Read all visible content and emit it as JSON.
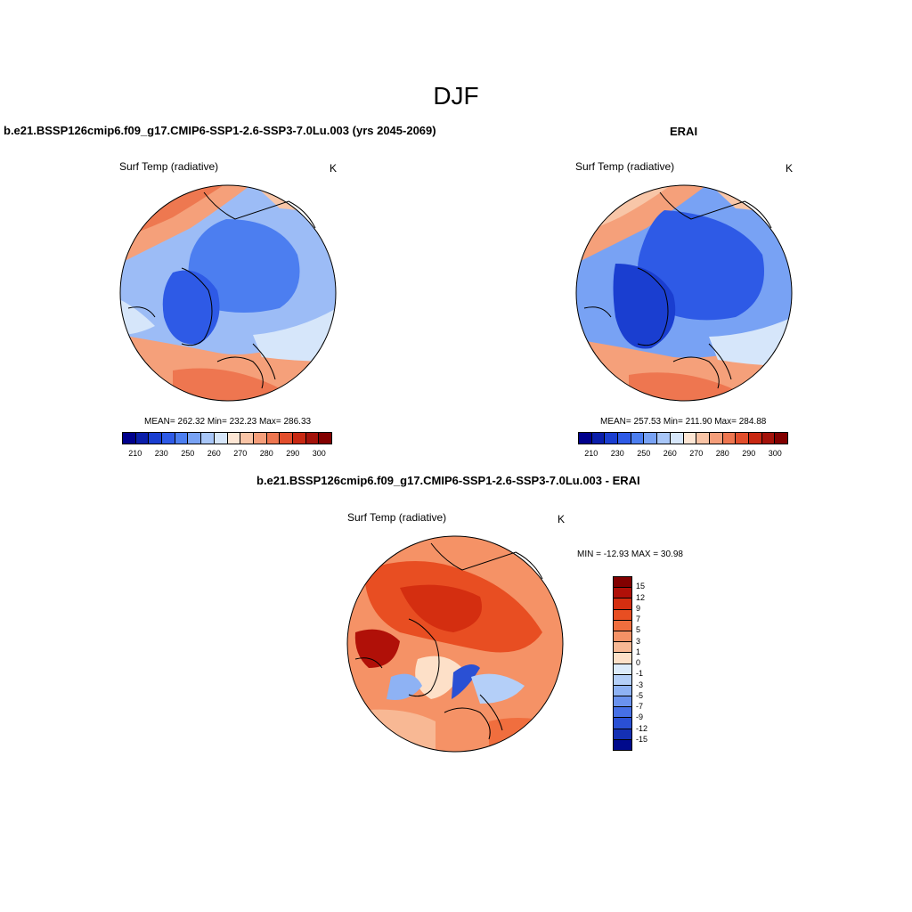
{
  "figure": {
    "main_title": "DJF"
  },
  "panels": [
    {
      "title": "b.e21.BSSP126cmip6.f09_g17.CMIP6-SSP1-2.6-SSP3-7.0Lu.003 (yrs 2045-2069)",
      "variable": "Surf Temp (radiative)",
      "units": "K",
      "stats": "MEAN= 262.32  Min= 232.23  Max= 286.33"
    },
    {
      "title": "ERAI",
      "variable": "Surf Temp (radiative)",
      "units": "K",
      "stats": "MEAN= 257.53  Min= 211.90  Max= 284.88"
    },
    {
      "title": "b.e21.BSSP126cmip6.f09_g17.CMIP6-SSP1-2.6-SSP3-7.0Lu.003 - ERAI",
      "variable": "Surf Temp (radiative)",
      "units": "K",
      "stats": "MIN = -12.93 MAX =  30.98"
    }
  ],
  "abs_colorbar": {
    "colors": [
      "#00008c",
      "#0a1eaa",
      "#1a3ed0",
      "#2e5ae6",
      "#4c7ef0",
      "#78a2f4",
      "#a8c6f8",
      "#d6e6fa",
      "#fde6d4",
      "#f9c4a6",
      "#f59e7a",
      "#ee7650",
      "#e24e2c",
      "#c82812",
      "#a4120a",
      "#820000"
    ],
    "tick_labels": [
      "210",
      "230",
      "250",
      "260",
      "270",
      "280",
      "290",
      "300"
    ]
  },
  "diff_colorbar": {
    "colors": [
      "#820000",
      "#b01008",
      "#d42e10",
      "#e84e22",
      "#f06e3e",
      "#f59266",
      "#f8b894",
      "#fde0c8",
      "#dcebfb",
      "#b4cff8",
      "#8eb2f4",
      "#6a92ee",
      "#4670e6",
      "#2a50d4",
      "#1430b4",
      "#000a8c"
    ],
    "tick_labels": [
      "15",
      "12",
      "9",
      "7",
      "5",
      "3",
      "1",
      "0",
      "-1",
      "-3",
      "-5",
      "-7",
      "-9",
      "-12",
      "-15"
    ]
  }
}
